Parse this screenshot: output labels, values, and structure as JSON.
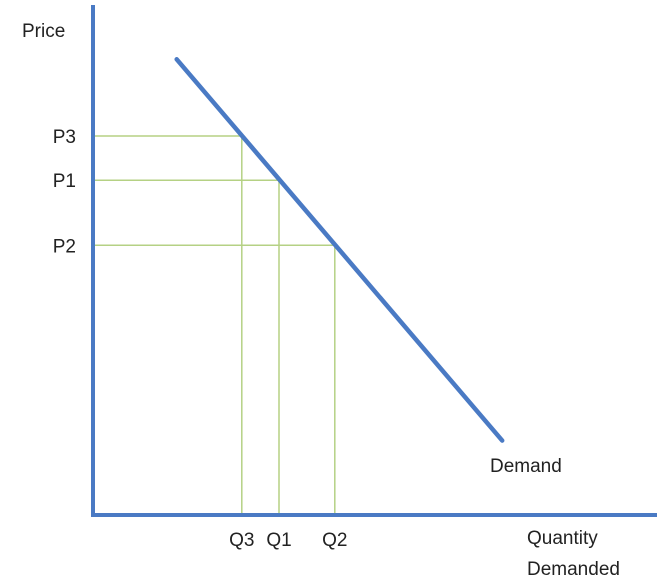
{
  "chart_data": {
    "type": "line",
    "title": "",
    "xlabel_lines": [
      "Quantity",
      "Demanded"
    ],
    "ylabel": "Price",
    "grid": false,
    "legend": "none",
    "colors": {
      "axis": "#4a7ac4",
      "demand_line": "#4a7ac4",
      "guide_lines": "#b5d184",
      "text": "#222222"
    },
    "series": [
      {
        "name": "Demand",
        "x": [
          0.9,
          4.4
        ],
        "y": [
          4.9,
          0.8
        ]
      }
    ],
    "points": [
      {
        "x_label": "Q3",
        "y_label": "P3",
        "x": 1.6,
        "y": 4.075
      },
      {
        "x_label": "Q1",
        "y_label": "P1",
        "x": 2.0,
        "y": 3.6
      },
      {
        "x_label": "Q2",
        "y_label": "P2",
        "x": 2.6,
        "y": 2.9
      }
    ],
    "xlim": [
      0,
      5.5
    ],
    "ylim": [
      0,
      5.5
    ]
  }
}
